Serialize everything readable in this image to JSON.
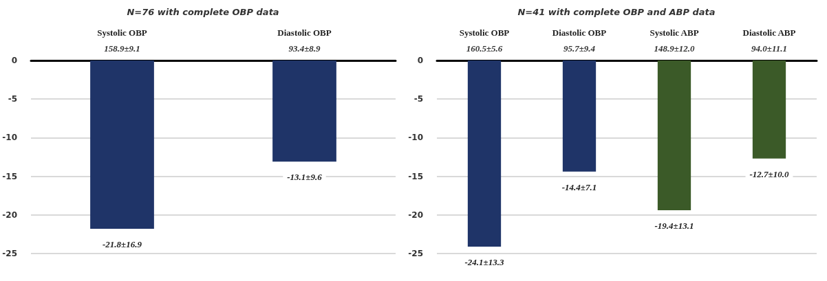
{
  "chart_data": [
    {
      "type": "bar",
      "title": "N=76 with complete OBP data",
      "categories": [
        "Systolic OBP",
        "Diastolic OBP"
      ],
      "series": [
        {
          "color": "#1f3468",
          "values": [
            -21.8,
            -13.1
          ],
          "value_labels": [
            "-21.8±16.9",
            "-13.1±9.6"
          ]
        }
      ],
      "annotations": [
        "158.9±9.1",
        "93.4±8.9"
      ],
      "ylim": [
        -25,
        0
      ],
      "yticks": [
        0,
        -5,
        -10,
        -15,
        -20,
        -25
      ],
      "grid": "y"
    },
    {
      "type": "bar",
      "title": "N=41 with complete OBP and ABP data",
      "categories": [
        "Systolic OBP",
        "Diastolic OBP",
        "Systolic ABP",
        "Diastolic ABP"
      ],
      "series": [
        {
          "colors": [
            "#1f3468",
            "#1f3468",
            "#3b5a28",
            "#3b5a28"
          ],
          "values": [
            -24.1,
            -14.4,
            -19.4,
            -12.7
          ],
          "value_labels": [
            "-24.1±13.3",
            "-14.4±7.1",
            "-19.4±13.1",
            "-12.7±10.0"
          ]
        }
      ],
      "annotations": [
        "160.5±5.6",
        "95.7±9.4",
        "148.9±12.0",
        "94.0±11.1"
      ],
      "ylim": [
        -25,
        0
      ],
      "yticks": [
        0,
        -5,
        -10,
        -15,
        -20,
        -25
      ],
      "grid": "y"
    }
  ]
}
